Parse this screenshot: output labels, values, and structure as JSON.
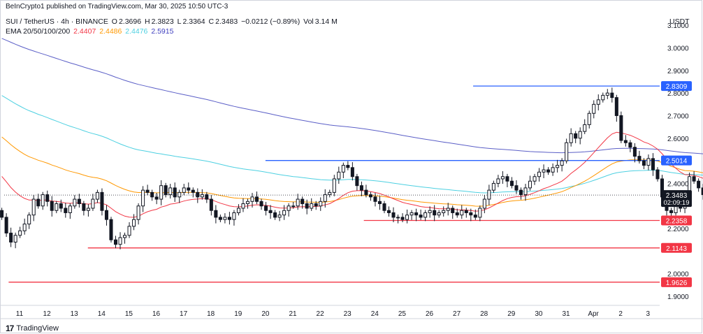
{
  "header": {
    "publish_line": "BeInCrypto1 published on TradingView.com, Mar 30, 2025 10:50 UTC-3",
    "symbol": "SUI / TetherUS · 4h · BINANCE",
    "o_label": "O",
    "o_value": "2.3696",
    "h_label": "H",
    "h_value": "2.3823",
    "l_label": "L",
    "l_value": "2.3364",
    "c_label": "C",
    "c_value": "2.3483",
    "change": "−0.0212 (−0.89%)",
    "vol_label": "Vol",
    "vol_value": "3.14 M",
    "ema_label": "EMA 20/50/100/200",
    "ema20": "2.4407",
    "ema50": "2.4486",
    "ema100": "2.4476",
    "ema200": "2.5915",
    "currency": "USDT"
  },
  "footer": {
    "logo": "17",
    "brand": "TradingView"
  },
  "colors": {
    "up": "#131722",
    "down": "#131722",
    "ema20": "#f23645",
    "ema50": "#ff9800",
    "ema100": "#4dd0e1",
    "ema200": "#5b5fc7",
    "resistance": "#2962ff",
    "support": "#f23645"
  },
  "chart_data": {
    "type": "candlestick",
    "y_ticks": [
      "3.1000",
      "3.0000",
      "2.9000",
      "2.8000",
      "2.7000",
      "2.6000",
      "2.4000",
      "2.2000",
      "2.0000",
      "1.9000"
    ],
    "ylim": [
      1.86,
      3.15
    ],
    "x_ticks": [
      "11",
      "12",
      "13",
      "14",
      "15",
      "16",
      "17",
      "18",
      "19",
      "20",
      "21",
      "22",
      "23",
      "24",
      "25",
      "26",
      "27",
      "28",
      "29",
      "30",
      "31",
      "Apr",
      "2",
      "3"
    ],
    "last_price": "2.3483",
    "countdown": "02:09:19",
    "levels": [
      {
        "label": "2.8309",
        "value": 2.8309,
        "role": "resistance",
        "from_day": 27.6
      },
      {
        "label": "2.5014",
        "value": 2.5014,
        "role": "resistance",
        "from_day": 20.0
      },
      {
        "label": "2.2358",
        "value": 2.2358,
        "role": "support",
        "from_day": 23.6
      },
      {
        "label": "2.1143",
        "value": 2.1143,
        "role": "support",
        "from_day": 13.5
      },
      {
        "label": "1.9626",
        "value": 1.9626,
        "role": "support",
        "from_day": 10.6
      }
    ],
    "closes": [
      2.25,
      2.18,
      2.14,
      2.17,
      2.19,
      2.22,
      2.26,
      2.33,
      2.3,
      2.35,
      2.32,
      2.28,
      2.31,
      2.29,
      2.27,
      2.3,
      2.33,
      2.31,
      2.28,
      2.29,
      2.33,
      2.36,
      2.28,
      2.24,
      2.15,
      2.13,
      2.16,
      2.17,
      2.21,
      2.24,
      2.3,
      2.37,
      2.36,
      2.34,
      2.33,
      2.39,
      2.35,
      2.38,
      2.34,
      2.36,
      2.38,
      2.37,
      2.36,
      2.34,
      2.35,
      2.33,
      2.28,
      2.25,
      2.24,
      2.25,
      2.24,
      2.27,
      2.29,
      2.31,
      2.32,
      2.34,
      2.32,
      2.3,
      2.28,
      2.27,
      2.25,
      2.26,
      2.28,
      2.3,
      2.3,
      2.33,
      2.31,
      2.29,
      2.31,
      2.3,
      2.32,
      2.35,
      2.36,
      2.42,
      2.45,
      2.48,
      2.47,
      2.43,
      2.39,
      2.37,
      2.35,
      2.34,
      2.32,
      2.31,
      2.28,
      2.27,
      2.25,
      2.25,
      2.24,
      2.26,
      2.27,
      2.26,
      2.25,
      2.27,
      2.28,
      2.26,
      2.27,
      2.28,
      2.29,
      2.27,
      2.26,
      2.28,
      2.27,
      2.26,
      2.25,
      2.29,
      2.33,
      2.37,
      2.4,
      2.42,
      2.43,
      2.41,
      2.39,
      2.37,
      2.35,
      2.38,
      2.41,
      2.43,
      2.45,
      2.46,
      2.45,
      2.47,
      2.48,
      2.5,
      2.58,
      2.62,
      2.6,
      2.63,
      2.66,
      2.71,
      2.75,
      2.77,
      2.79,
      2.8,
      2.78,
      2.7,
      2.59,
      2.58,
      2.56,
      2.52,
      2.5,
      2.48,
      2.51,
      2.46,
      2.42,
      2.34,
      2.28,
      2.27,
      2.3,
      2.29,
      2.33,
      2.43,
      2.41,
      2.38,
      2.35
    ],
    "ema20": "2.4407",
    "ema50": "2.4486",
    "ema100": "2.4476",
    "ema200": "2.5915"
  }
}
